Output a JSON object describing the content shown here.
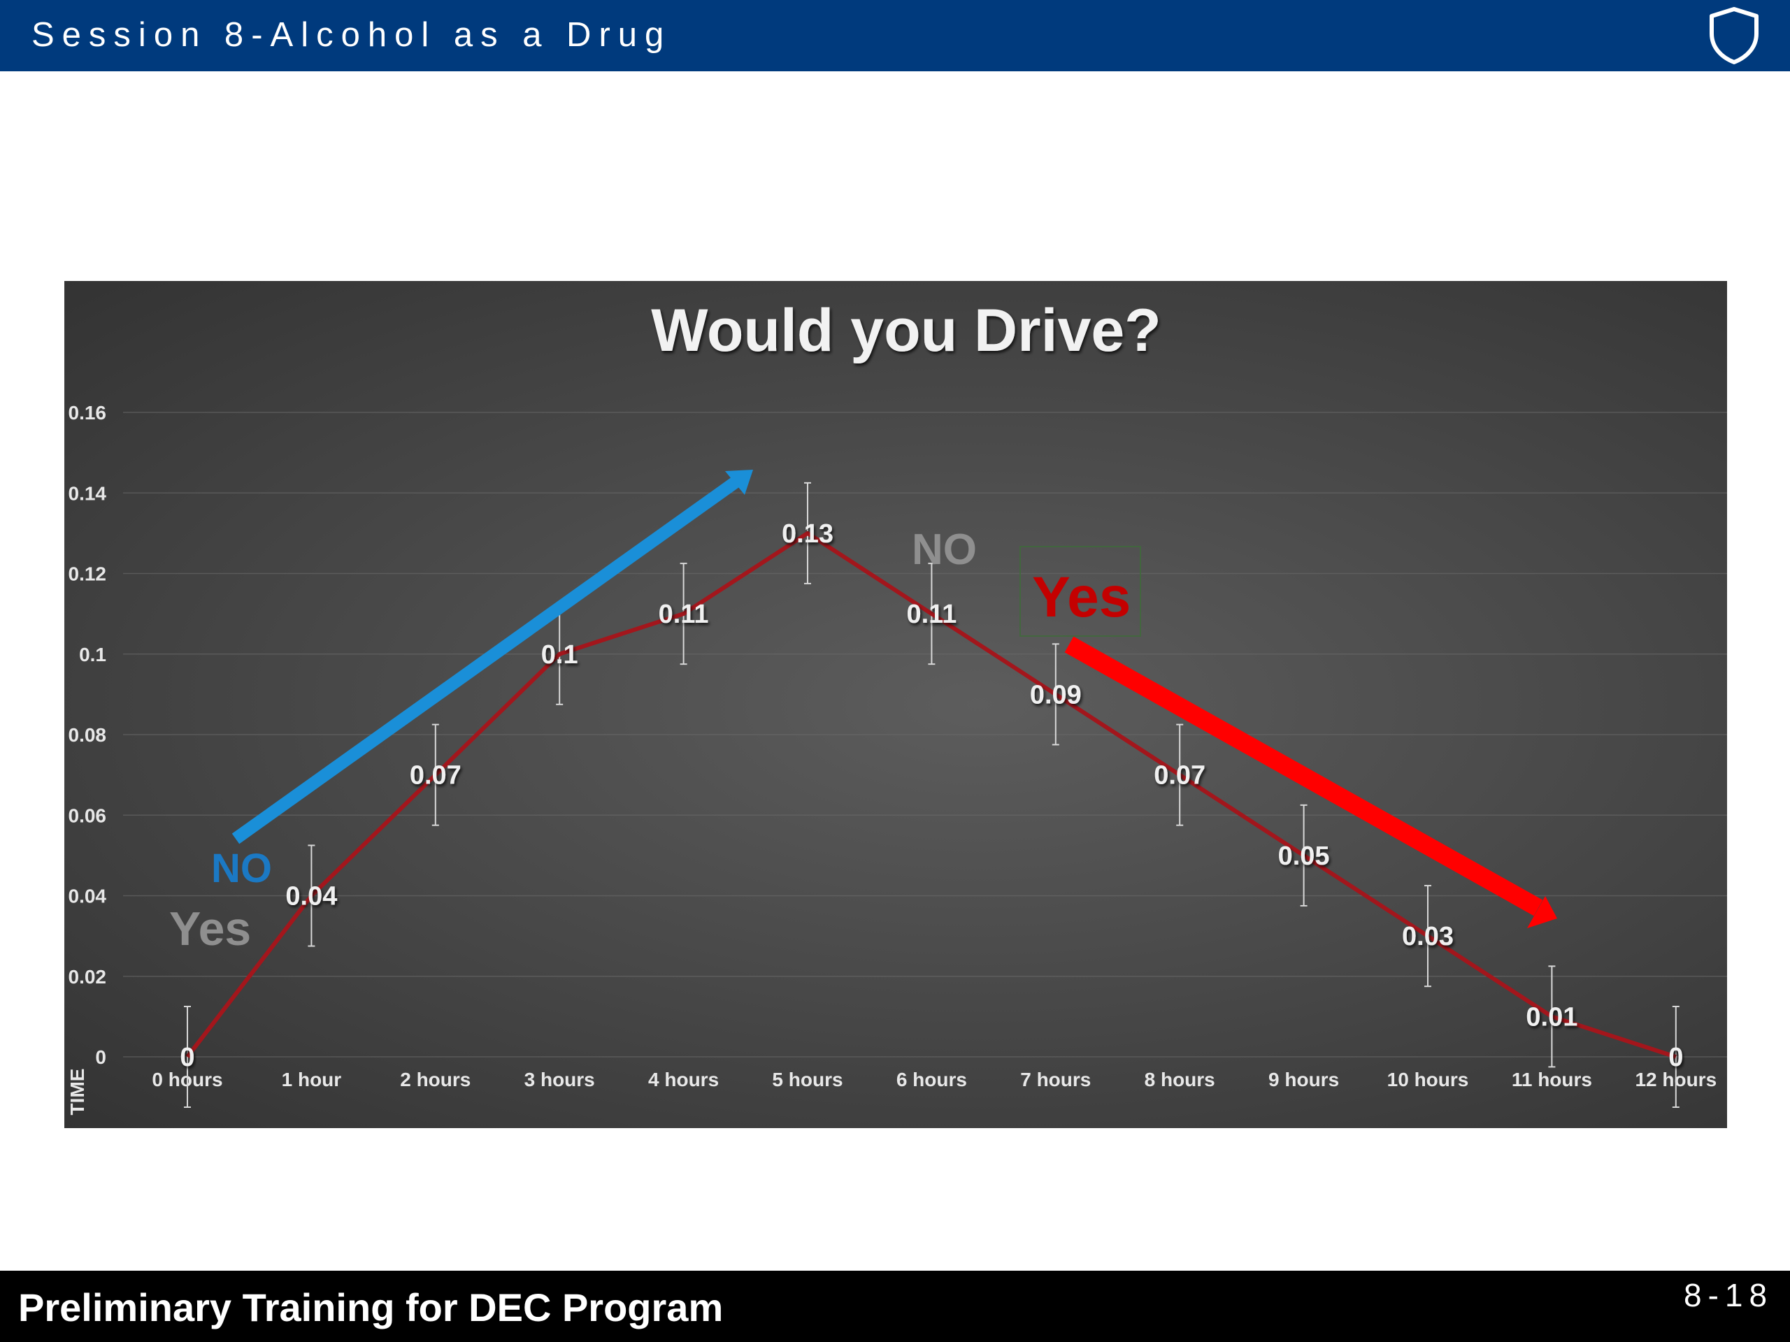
{
  "header": {
    "session_title": "Session 8-Alcohol as a Drug",
    "icon": "shield-icon",
    "background": "#003a7d"
  },
  "footer": {
    "program_title": "Preliminary Training for DEC Program",
    "page_number": "8-18",
    "background": "#000000"
  },
  "chart_data": {
    "type": "line",
    "title": "Would you Drive?",
    "xlabel": "TIME",
    "ylabel": "",
    "categories": [
      "0 hours",
      "1 hour",
      "2 hours",
      "3 hours",
      "4 hours",
      "5 hours",
      "6 hours",
      "7 hours",
      "8 hours",
      "9 hours",
      "10 hours",
      "11 hours",
      "12 hours"
    ],
    "values": [
      0,
      0.04,
      0.07,
      0.1,
      0.11,
      0.13,
      0.11,
      0.09,
      0.07,
      0.05,
      0.03,
      0.01,
      0
    ],
    "data_labels": [
      "0",
      "0.04",
      "0.07",
      "0.1",
      "0.11",
      "0.13",
      "0.11",
      "0.09",
      "0.07",
      "0.05",
      "0.03",
      "0.01",
      "0"
    ],
    "error_bar": 0.0125,
    "ylim": [
      0,
      0.16
    ],
    "y_ticks": [
      "0",
      "0.02",
      "0.04",
      "0.06",
      "0.08",
      "0.1",
      "0.12",
      "0.14",
      "0.16"
    ],
    "grid": true,
    "line_color": "#a3161c",
    "annotations": {
      "left_no": "NO",
      "left_yes": "Yes",
      "right_no": "NO",
      "right_yes": "Yes"
    },
    "colors": {
      "rising_arrow": "#1a8fd8",
      "falling_arrow": "#ff0000",
      "left_no": "#1b79c4",
      "left_yes": "#8f8f8f",
      "right_no": "#8f8f8f",
      "right_yes": "#c40000"
    }
  }
}
